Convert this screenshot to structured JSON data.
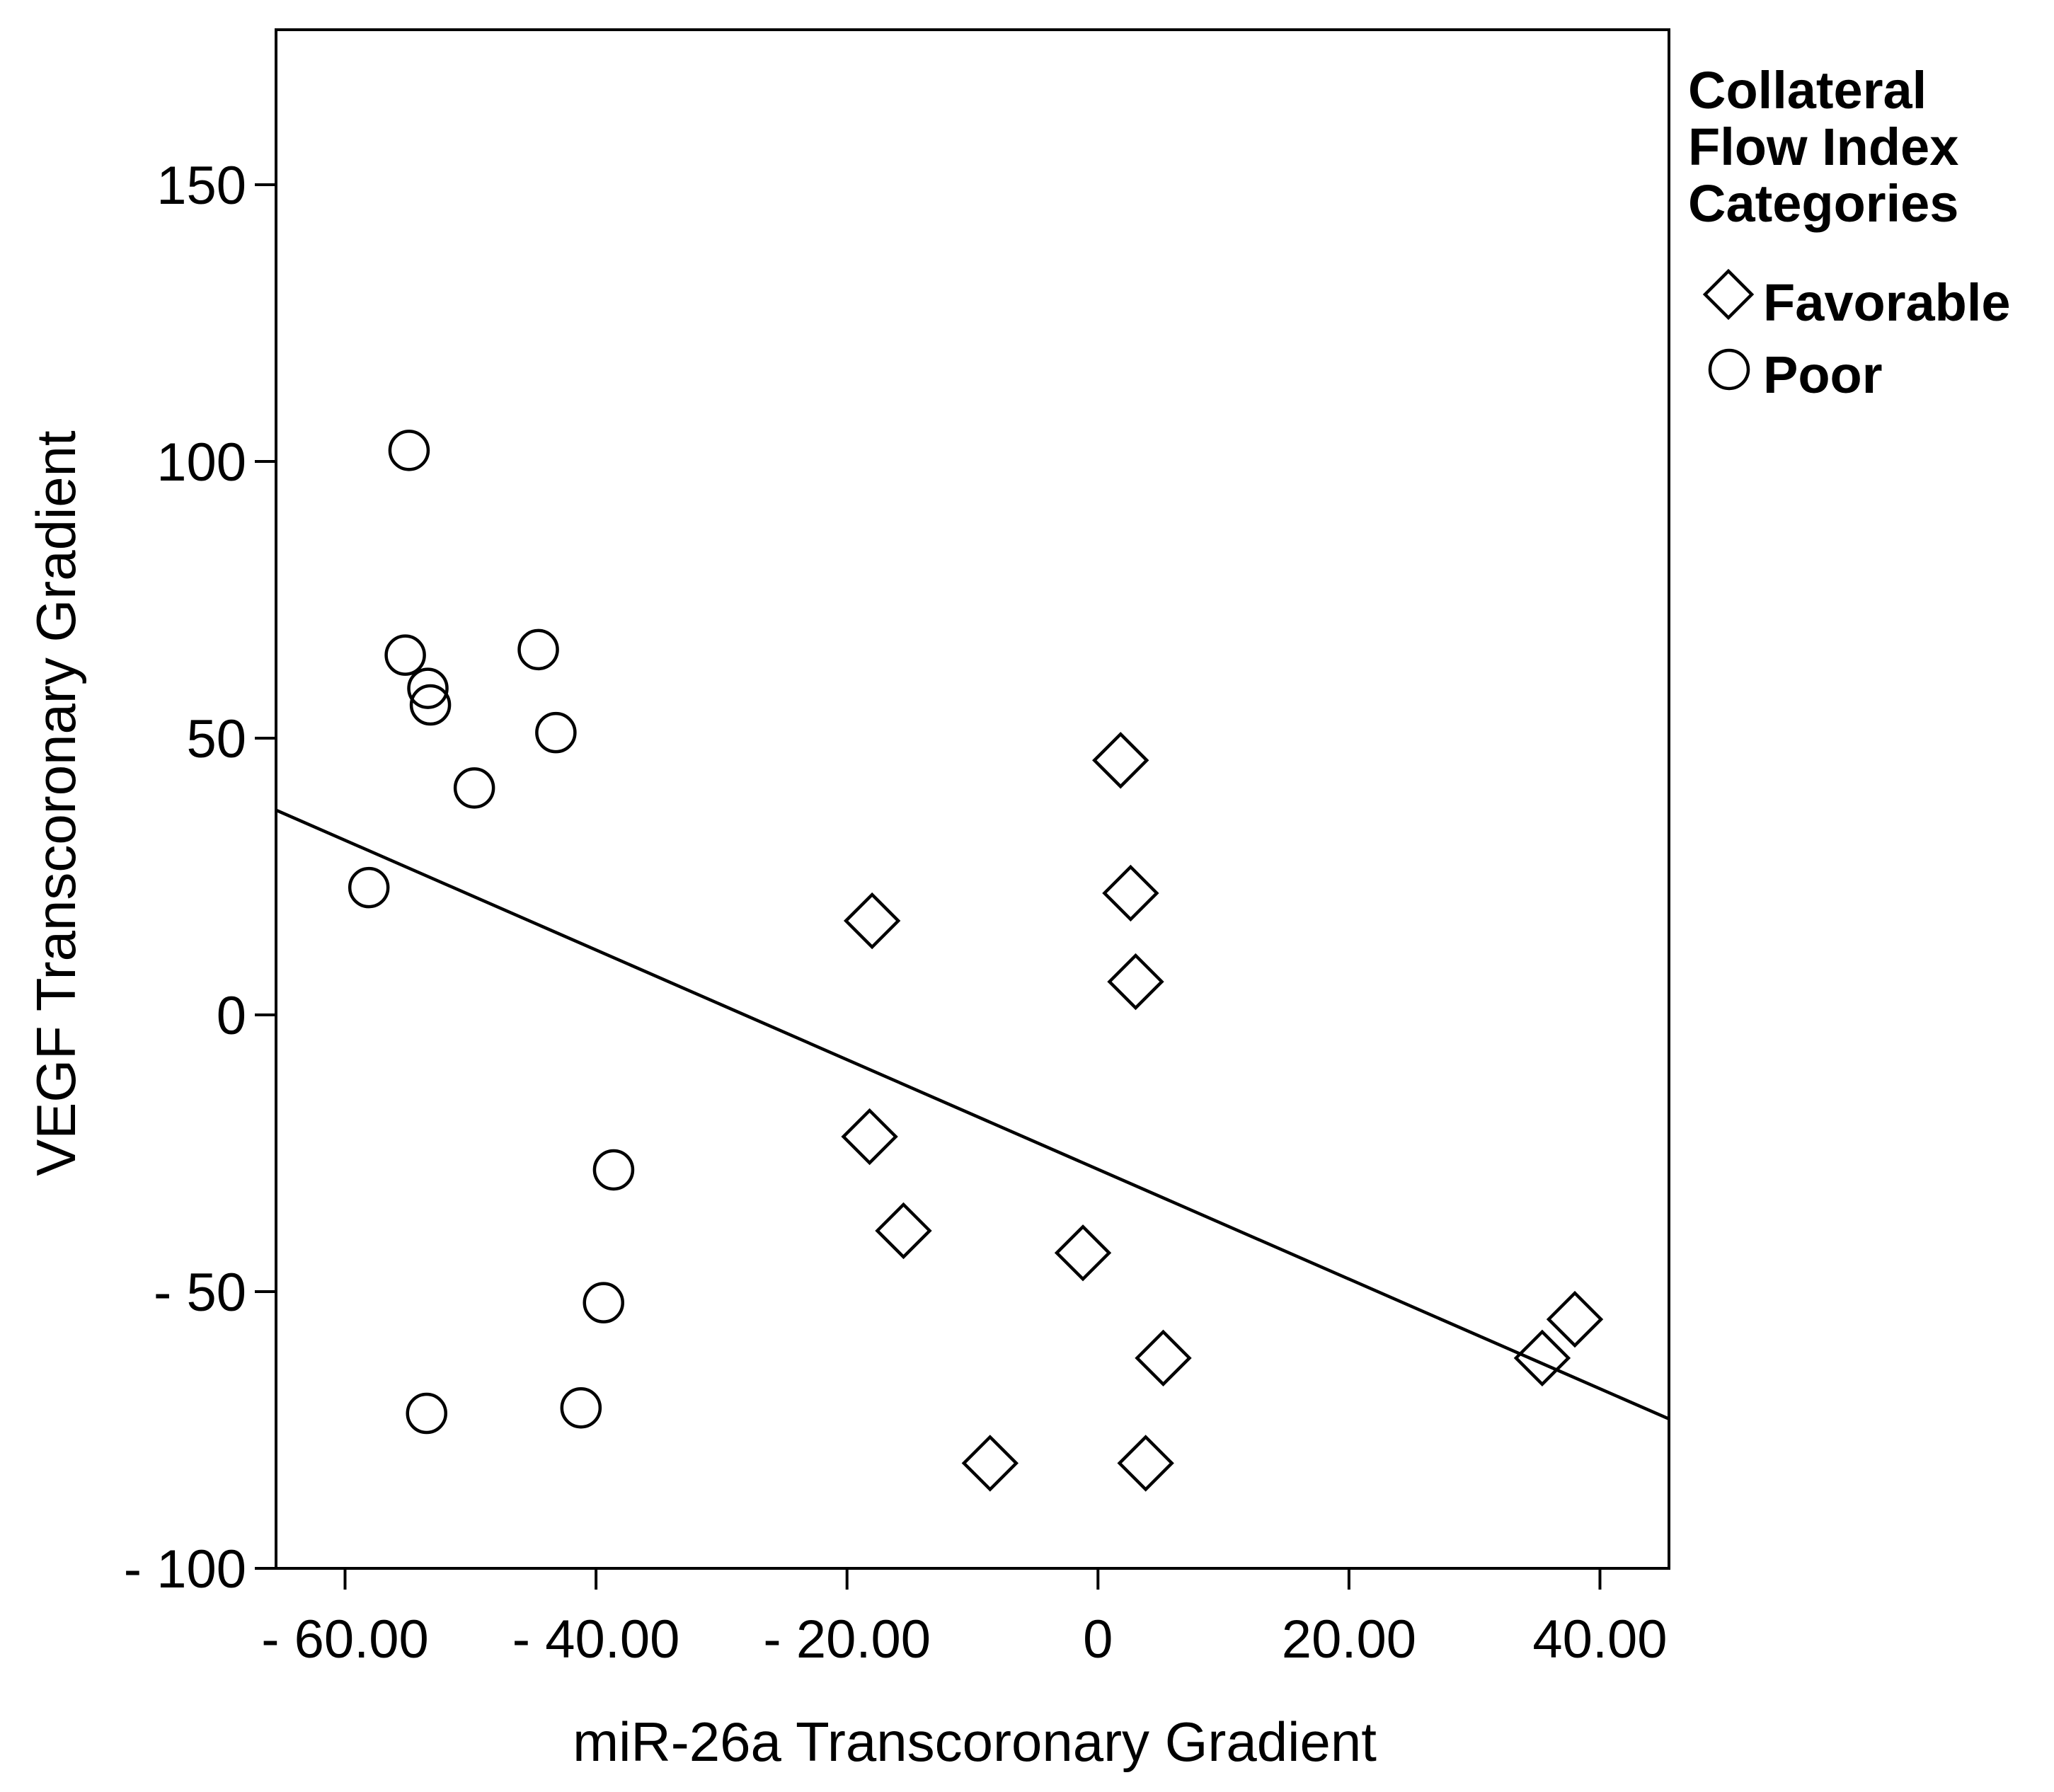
{
  "chart_data": {
    "type": "scatter",
    "title": "",
    "xlabel": "miR-26a Transcoronary Gradient",
    "ylabel": "VEGF Transcoronary Gradient",
    "xlim": [
      -65.5,
      45.5
    ],
    "ylim": [
      -100,
      178
    ],
    "xticks": [
      -60,
      -40,
      -20,
      0,
      20,
      40
    ],
    "xtick_labels": [
      "- 60.00",
      "- 40.00",
      "- 20.00",
      "0",
      "20.00",
      "40.00"
    ],
    "yticks": [
      -100,
      -50,
      0,
      50,
      100,
      150
    ],
    "ytick_labels": [
      "- 100",
      "- 50",
      "0",
      "50",
      "100",
      "150"
    ],
    "legend": {
      "title_lines": [
        "Collateral",
        "Flow Index",
        "Categories"
      ],
      "position": "right-outside-top"
    },
    "series": [
      {
        "name": "Favorable",
        "marker": "diamond",
        "points": [
          {
            "x": 1.8,
            "y": 46
          },
          {
            "x": 2.6,
            "y": 22
          },
          {
            "x": 3.0,
            "y": 6
          },
          {
            "x": -18.0,
            "y": 17
          },
          {
            "x": -18.2,
            "y": -22
          },
          {
            "x": -15.5,
            "y": -39
          },
          {
            "x": -1.2,
            "y": -43
          },
          {
            "x": 5.2,
            "y": -62
          },
          {
            "x": -8.6,
            "y": -81
          },
          {
            "x": 3.8,
            "y": -81
          },
          {
            "x": 35.4,
            "y": -62
          },
          {
            "x": 38.0,
            "y": -55
          }
        ]
      },
      {
        "name": "Poor",
        "marker": "circle",
        "points": [
          {
            "x": -54.9,
            "y": 102
          },
          {
            "x": -55.2,
            "y": 65
          },
          {
            "x": -53.4,
            "y": 59
          },
          {
            "x": -53.2,
            "y": 56
          },
          {
            "x": -44.6,
            "y": 66
          },
          {
            "x": -43.2,
            "y": 51
          },
          {
            "x": -49.7,
            "y": 41
          },
          {
            "x": -58.1,
            "y": 23
          },
          {
            "x": -38.6,
            "y": -28
          },
          {
            "x": -39.4,
            "y": -52
          },
          {
            "x": -53.5,
            "y": -72
          },
          {
            "x": -41.2,
            "y": -71
          }
        ]
      }
    ],
    "fit_line": {
      "label": "",
      "x": [
        -65.5,
        45.5
      ],
      "y": [
        37.0,
        -73.0
      ]
    }
  }
}
